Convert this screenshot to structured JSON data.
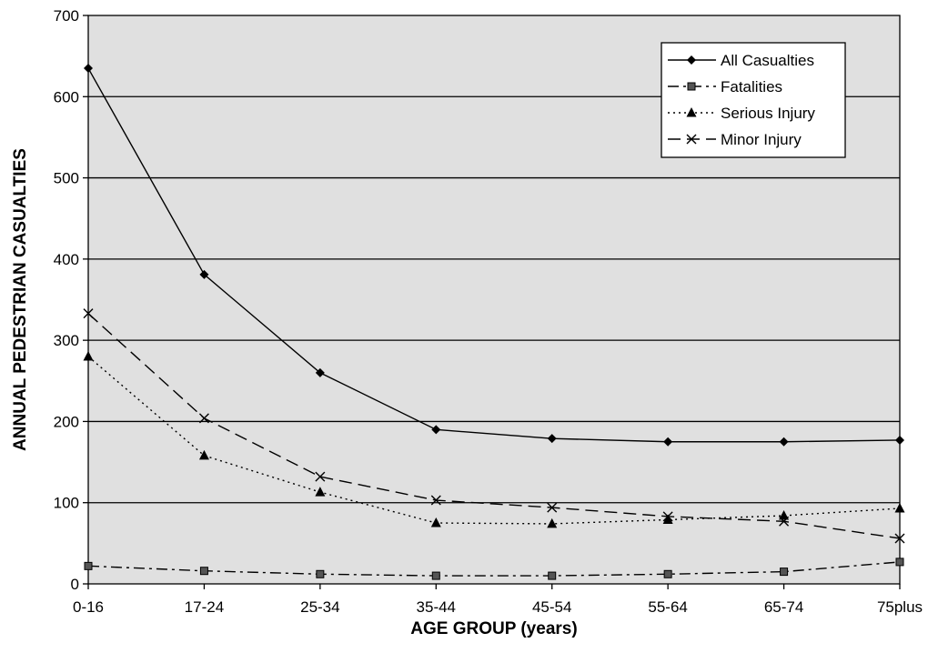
{
  "chart_data": {
    "type": "line",
    "title": "",
    "xlabel": "AGE GROUP (years)",
    "ylabel": "ANNUAL PEDESTRIAN CASUALTIES",
    "categories": [
      "0-16",
      "17-24",
      "25-34",
      "35-44",
      "45-54",
      "55-64",
      "65-74",
      "75plus"
    ],
    "ylim": [
      0,
      700
    ],
    "yticks": [
      "0",
      "100",
      "200",
      "300",
      "400",
      "500",
      "600",
      "700"
    ],
    "grid": "horizontal",
    "legend_position": "top-right",
    "background_color": "#e0e0e0",
    "series": [
      {
        "name": "All Casualties",
        "values": [
          635,
          381,
          260,
          190,
          179,
          175,
          175,
          177
        ],
        "marker": "diamond",
        "dash": "solid"
      },
      {
        "name": "Fatalities",
        "values": [
          22,
          16,
          12,
          10,
          10,
          12,
          15,
          27
        ],
        "marker": "square",
        "dash": "dashdot"
      },
      {
        "name": "Serious Injury",
        "values": [
          280,
          158,
          113,
          75,
          74,
          79,
          84,
          93
        ],
        "marker": "triangle",
        "dash": "dotted"
      },
      {
        "name": "Minor Injury",
        "values": [
          333,
          204,
          132,
          103,
          94,
          83,
          77,
          56
        ],
        "marker": "x",
        "dash": "dashed"
      }
    ]
  }
}
